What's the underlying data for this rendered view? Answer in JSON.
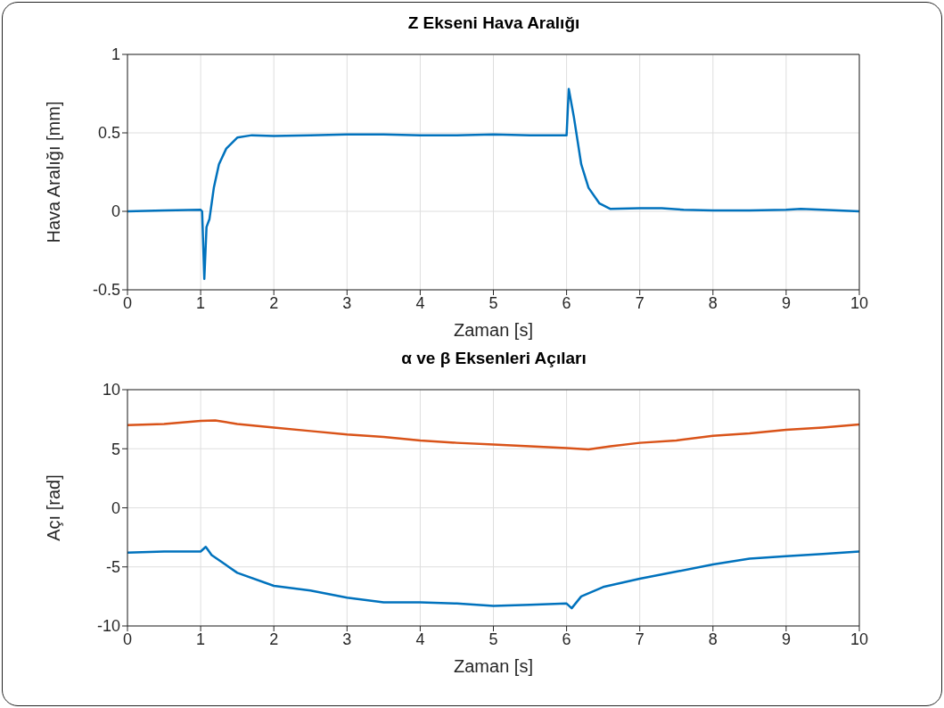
{
  "chart_data": [
    {
      "type": "line",
      "title": "Z Ekseni Hava Aralığı",
      "xlabel": "Zaman [s]",
      "ylabel": "Hava Aralığı [mm]",
      "xlim": [
        0,
        10
      ],
      "xticks": [
        0,
        1,
        2,
        3,
        4,
        5,
        6,
        7,
        8,
        9,
        10
      ],
      "ylim": [
        -0.5,
        1
      ],
      "yticks": [
        -0.5,
        0,
        0.5,
        1
      ],
      "grid": true,
      "x": [
        0,
        0.5,
        1.0,
        1.02,
        1.05,
        1.08,
        1.12,
        1.18,
        1.25,
        1.35,
        1.5,
        1.7,
        2,
        2.5,
        3,
        3.5,
        4,
        4.5,
        5,
        5.5,
        6.0,
        6.03,
        6.1,
        6.2,
        6.3,
        6.45,
        6.6,
        7,
        7.3,
        7.6,
        8,
        8.5,
        9,
        9.2,
        9.5,
        10
      ],
      "series": [
        {
          "color": "#0072bd",
          "values": [
            0,
            0.005,
            0.01,
            0.0,
            -0.43,
            -0.1,
            -0.05,
            0.15,
            0.3,
            0.4,
            0.47,
            0.485,
            0.48,
            0.485,
            0.49,
            0.49,
            0.485,
            0.485,
            0.49,
            0.485,
            0.485,
            0.78,
            0.6,
            0.3,
            0.15,
            0.05,
            0.015,
            0.02,
            0.02,
            0.01,
            0.005,
            0.005,
            0.01,
            0.015,
            0.01,
            0
          ]
        }
      ]
    },
    {
      "type": "line",
      "title": "α ve β Eksenleri Açıları",
      "xlabel": "Zaman [s]",
      "ylabel": "Açı [rad]",
      "xlim": [
        0,
        10
      ],
      "xticks": [
        0,
        1,
        2,
        3,
        4,
        5,
        6,
        7,
        8,
        9,
        10
      ],
      "ylim": [
        -10,
        10
      ],
      "yticks": [
        -10,
        -5,
        0,
        5,
        10
      ],
      "grid": true,
      "series": [
        {
          "color": "#d95319",
          "x": [
            0,
            0.5,
            1,
            1.2,
            1.5,
            2,
            2.5,
            3,
            3.5,
            4,
            4.5,
            5,
            5.5,
            6,
            6.3,
            6.6,
            7,
            7.5,
            8,
            8.5,
            9,
            9.5,
            10
          ],
          "values": [
            7.0,
            7.1,
            7.35,
            7.4,
            7.1,
            6.8,
            6.5,
            6.2,
            6.0,
            5.7,
            5.5,
            5.35,
            5.2,
            5.05,
            4.95,
            5.2,
            5.5,
            5.7,
            6.1,
            6.3,
            6.6,
            6.8,
            7.05
          ]
        },
        {
          "color": "#0072bd",
          "x": [
            0,
            0.5,
            1.0,
            1.07,
            1.15,
            1.5,
            2,
            2.5,
            3,
            3.5,
            4,
            4.5,
            5,
            5.5,
            6.0,
            6.07,
            6.2,
            6.5,
            7,
            7.5,
            8,
            8.5,
            9,
            9.5,
            10
          ],
          "values": [
            -3.8,
            -3.7,
            -3.7,
            -3.3,
            -4.0,
            -5.5,
            -6.6,
            -7.0,
            -7.6,
            -8.0,
            -8.0,
            -8.1,
            -8.3,
            -8.2,
            -8.1,
            -8.5,
            -7.5,
            -6.7,
            -6.0,
            -5.4,
            -4.8,
            -4.3,
            -4.1,
            -3.9,
            -3.7
          ]
        }
      ]
    }
  ]
}
